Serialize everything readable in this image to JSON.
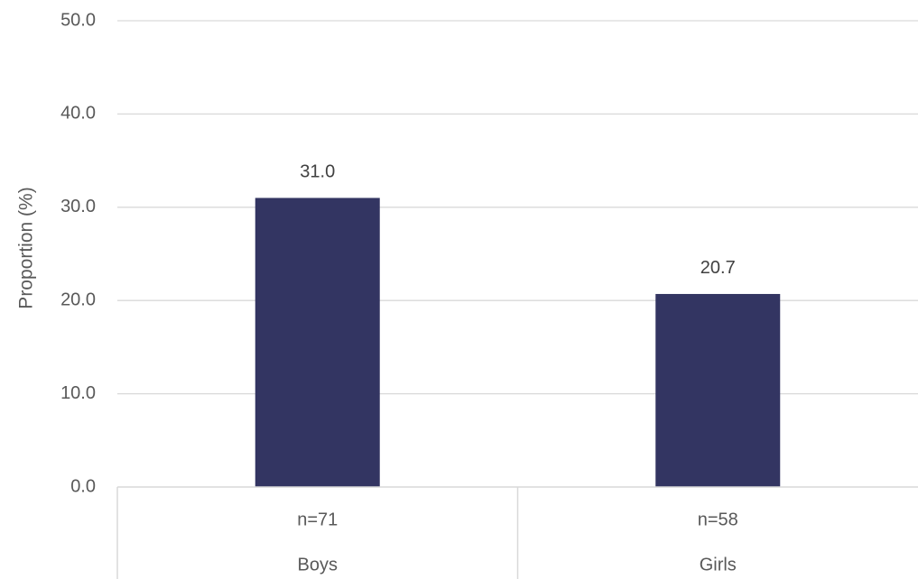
{
  "chart_data": {
    "type": "bar",
    "ylabel": "Proportion (%)",
    "ylim": [
      0,
      50
    ],
    "yticks": [
      "0.0",
      "10.0",
      "20.0",
      "30.0",
      "40.0",
      "50.0"
    ],
    "grid": true,
    "categories": [
      {
        "label": "Boys",
        "sublabel": "n=71",
        "value": 31.0,
        "value_label": "31.0"
      },
      {
        "label": "Girls",
        "sublabel": "n=58",
        "value": 20.7,
        "value_label": "20.7"
      }
    ],
    "bar_color": "#333562",
    "gridline_color": "#d9d9d9"
  }
}
